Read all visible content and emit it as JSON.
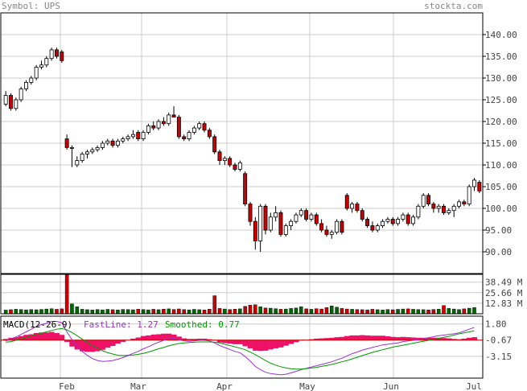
{
  "header": {
    "symbol_label": "Symbol:",
    "symbol": "UPS",
    "site": "stockta.com"
  },
  "colors": {
    "up": "#ffffff",
    "down": "#cc0000",
    "vol_up": "#006600",
    "vol_down": "#cc0000",
    "grid": "#cccccc",
    "histogram": "#ee1166",
    "fastline": "#9933cc",
    "smoothed": "#009900",
    "zero_line": "#cc0000"
  },
  "chart_data": [
    {
      "type": "candlestick",
      "title": "",
      "x_ticks": [
        "Feb",
        "Mar",
        "Apr",
        "May",
        "Jun",
        "Jul"
      ],
      "y_ticks": [
        "140.00",
        "135.00",
        "130.00",
        "125.00",
        "120.00",
        "115.00",
        "110.00",
        "105.00",
        "100.00",
        "95.00",
        "90.00"
      ],
      "ylim": [
        85,
        145
      ],
      "grid": true,
      "ohlc": [
        [
          124.0,
          127.0,
          123.5,
          126.0
        ],
        [
          126.0,
          126.5,
          122.5,
          123.0
        ],
        [
          123.0,
          125.5,
          122.5,
          125.0
        ],
        [
          125.0,
          128.0,
          124.5,
          127.5
        ],
        [
          127.5,
          129.5,
          127.0,
          129.0
        ],
        [
          129.0,
          130.5,
          128.5,
          130.0
        ],
        [
          130.0,
          133.0,
          129.5,
          132.5
        ],
        [
          132.5,
          134.0,
          132.0,
          133.0
        ],
        [
          133.0,
          135.0,
          132.5,
          134.5
        ],
        [
          134.5,
          137.0,
          134.0,
          136.5
        ],
        [
          136.5,
          137.0,
          134.5,
          135.0
        ],
        [
          136.0,
          136.5,
          133.5,
          134.0
        ],
        [
          116.0,
          117.0,
          113.5,
          114.0
        ],
        [
          114.0,
          114.5,
          109.5,
          114.0
        ],
        [
          110.0,
          112.0,
          109.5,
          111.0
        ],
        [
          111.0,
          113.0,
          110.5,
          112.5
        ],
        [
          112.5,
          113.5,
          111.5,
          113.0
        ],
        [
          113.0,
          114.0,
          112.5,
          113.5
        ],
        [
          113.5,
          114.5,
          113.0,
          114.0
        ],
        [
          114.0,
          115.5,
          113.5,
          115.0
        ],
        [
          115.0,
          116.0,
          114.5,
          115.5
        ],
        [
          115.5,
          116.0,
          114.0,
          114.5
        ],
        [
          114.5,
          116.0,
          114.0,
          115.5
        ],
        [
          115.5,
          116.5,
          115.0,
          116.0
        ],
        [
          116.0,
          117.0,
          115.5,
          116.5
        ],
        [
          116.5,
          118.0,
          116.0,
          117.0
        ],
        [
          117.5,
          118.0,
          115.5,
          116.0
        ],
        [
          116.0,
          118.0,
          115.5,
          117.5
        ],
        [
          117.5,
          119.5,
          117.0,
          119.0
        ],
        [
          119.0,
          120.0,
          118.0,
          118.5
        ],
        [
          118.5,
          120.5,
          118.0,
          120.0
        ],
        [
          120.0,
          121.0,
          119.0,
          119.5
        ],
        [
          119.5,
          122.0,
          119.0,
          121.5
        ],
        [
          121.5,
          123.5,
          121.0,
          121.0
        ],
        [
          121.0,
          121.5,
          116.0,
          116.5
        ],
        [
          116.5,
          117.0,
          115.5,
          116.0
        ],
        [
          116.0,
          118.0,
          115.5,
          117.5
        ],
        [
          117.5,
          119.0,
          117.0,
          118.5
        ],
        [
          118.5,
          120.0,
          118.0,
          119.5
        ],
        [
          119.5,
          120.0,
          117.5,
          118.0
        ],
        [
          118.0,
          118.5,
          116.0,
          116.5
        ],
        [
          116.5,
          117.0,
          112.5,
          113.0
        ],
        [
          113.0,
          113.5,
          110.0,
          111.0
        ],
        [
          111.0,
          112.0,
          110.0,
          111.5
        ],
        [
          111.5,
          112.0,
          109.5,
          110.0
        ],
        [
          110.0,
          110.5,
          108.5,
          109.0
        ],
        [
          109.0,
          111.0,
          108.5,
          110.5
        ],
        [
          108.0,
          108.5,
          100.5,
          101.0
        ],
        [
          101.0,
          101.5,
          96.0,
          97.0
        ],
        [
          97.0,
          98.0,
          90.5,
          92.5
        ],
        [
          92.5,
          101.0,
          90.0,
          100.5
        ],
        [
          100.5,
          101.0,
          94.0,
          95.0
        ],
        [
          95.0,
          99.0,
          94.5,
          98.0
        ],
        [
          98.0,
          100.5,
          97.0,
          99.0
        ],
        [
          99.0,
          99.5,
          93.5,
          94.0
        ],
        [
          94.0,
          96.5,
          93.5,
          96.0
        ],
        [
          96.0,
          97.5,
          95.0,
          97.0
        ],
        [
          97.0,
          99.0,
          96.5,
          98.5
        ],
        [
          98.5,
          100.0,
          98.0,
          99.5
        ],
        [
          99.5,
          100.0,
          97.0,
          97.5
        ],
        [
          97.5,
          99.0,
          97.0,
          98.5
        ],
        [
          98.5,
          99.0,
          96.0,
          96.5
        ],
        [
          96.5,
          97.5,
          94.5,
          95.0
        ],
        [
          95.0,
          96.0,
          93.5,
          94.0
        ],
        [
          94.0,
          95.0,
          93.0,
          94.5
        ],
        [
          94.5,
          97.5,
          94.0,
          97.0
        ],
        [
          97.0,
          97.5,
          94.0,
          94.5
        ],
        [
          103.0,
          103.5,
          99.5,
          100.0
        ],
        [
          100.0,
          101.5,
          99.0,
          101.0
        ],
        [
          101.0,
          101.5,
          99.0,
          99.5
        ],
        [
          99.5,
          100.0,
          97.0,
          97.5
        ],
        [
          97.5,
          98.0,
          95.5,
          96.0
        ],
        [
          96.0,
          97.0,
          94.5,
          95.0
        ],
        [
          95.0,
          96.5,
          94.5,
          96.0
        ],
        [
          96.0,
          97.5,
          95.5,
          97.0
        ],
        [
          97.0,
          98.0,
          96.5,
          97.5
        ],
        [
          97.5,
          98.0,
          96.0,
          96.5
        ],
        [
          96.5,
          98.0,
          96.0,
          97.5
        ],
        [
          97.5,
          99.0,
          97.0,
          98.5
        ],
        [
          98.5,
          99.0,
          96.0,
          96.5
        ],
        [
          96.5,
          98.5,
          96.0,
          98.0
        ],
        [
          98.0,
          101.0,
          97.5,
          100.5
        ],
        [
          100.5,
          103.5,
          100.0,
          103.0
        ],
        [
          103.0,
          103.5,
          100.5,
          101.0
        ],
        [
          101.0,
          101.5,
          99.0,
          100.0
        ],
        [
          100.0,
          101.0,
          99.0,
          100.5
        ],
        [
          100.5,
          101.0,
          98.5,
          99.0
        ],
        [
          99.0,
          100.0,
          98.5,
          99.5
        ],
        [
          99.5,
          101.0,
          98.0,
          100.5
        ],
        [
          100.5,
          102.0,
          100.0,
          101.5
        ],
        [
          101.5,
          102.0,
          100.5,
          101.0
        ],
        [
          101.0,
          105.5,
          100.5,
          105.0
        ],
        [
          105.0,
          107.0,
          104.0,
          106.5
        ],
        [
          106.0,
          106.5,
          103.5,
          104.0
        ]
      ]
    },
    {
      "type": "bar",
      "title": "",
      "y_ticks": [
        "38.49 M",
        "25.66 M",
        "12.83 M"
      ],
      "ylim": [
        0,
        48
      ],
      "volume": [
        4.5,
        5.0,
        5.5,
        5.2,
        4.8,
        5.1,
        4.9,
        5.3,
        5.8,
        6.2,
        5.5,
        6.0,
        48.0,
        12.0,
        8.5,
        5.5,
        5.0,
        4.6,
        5.2,
        4.8,
        5.4,
        5.0,
        4.7,
        5.3,
        5.1,
        4.9,
        5.6,
        5.2,
        4.8,
        5.5,
        5.0,
        5.7,
        6.0,
        5.3,
        5.9,
        5.1,
        4.8,
        5.4,
        5.0,
        4.7,
        5.6,
        22.0,
        6.5,
        5.8,
        5.2,
        5.6,
        6.0,
        9.0,
        10.5,
        11.0,
        8.5,
        7.0,
        6.8,
        6.2,
        5.5,
        5.8,
        6.5,
        7.0,
        8.5,
        6.0,
        5.5,
        6.2,
        5.8,
        7.5,
        9.5,
        8.0,
        6.5,
        5.8,
        5.5,
        5.2,
        5.0,
        4.8,
        5.5,
        5.0,
        4.6,
        5.2,
        4.9,
        5.4,
        5.8,
        6.0,
        5.5,
        5.2,
        5.0,
        4.7,
        5.3,
        5.6,
        10.0,
        6.5,
        5.8,
        5.2,
        6.0,
        6.8,
        7.5
      ]
    },
    {
      "type": "line",
      "title": "MACD(12-26-9)",
      "y_ticks": [
        "1.80",
        "-0.67",
        "-3.15"
      ],
      "ylim": [
        -6.5,
        3.0
      ],
      "series": [
        {
          "name": "FastLine",
          "last": "1.27",
          "values": [
            -0.8,
            -0.5,
            -0.2,
            0.2,
            0.6,
            1.0,
            1.4,
            1.7,
            1.9,
            2.2,
            2.2,
            2.0,
            0.6,
            -0.6,
            -1.6,
            -2.4,
            -3.0,
            -3.5,
            -3.8,
            -3.95,
            -3.9,
            -3.8,
            -3.6,
            -3.35,
            -3.05,
            -2.7,
            -2.4,
            -2.0,
            -1.7,
            -1.3,
            -1.0,
            -0.7,
            -0.45,
            -0.4,
            -0.6,
            -0.8,
            -0.85,
            -0.8,
            -0.7,
            -0.7,
            -0.8,
            -1.1,
            -1.5,
            -1.8,
            -2.1,
            -2.4,
            -2.6,
            -3.2,
            -3.9,
            -4.7,
            -5.2,
            -5.6,
            -5.8,
            -5.9,
            -6.0,
            -5.9,
            -5.7,
            -5.45,
            -5.2,
            -5.0,
            -4.8,
            -4.6,
            -4.4,
            -4.2,
            -4.0,
            -3.7,
            -3.45,
            -3.1,
            -2.75,
            -2.5,
            -2.2,
            -2.0,
            -1.8,
            -1.6,
            -1.4,
            -1.3,
            -1.2,
            -1.1,
            -0.9,
            -0.8,
            -0.7,
            -0.6,
            -0.45,
            -0.3,
            -0.15,
            0.0,
            0.1,
            0.2,
            0.3,
            0.45,
            0.7,
            1.0,
            1.27
          ]
        },
        {
          "name": "Smoothed",
          "last": "0.77",
          "values": [
            -1.0,
            -0.9,
            -0.7,
            -0.5,
            -0.3,
            0.0,
            0.2,
            0.4,
            0.6,
            0.8,
            1.0,
            1.1,
            0.9,
            0.5,
            0.0,
            -0.5,
            -1.0,
            -1.5,
            -1.9,
            -2.3,
            -2.6,
            -2.8,
            -3.0,
            -3.05,
            -3.0,
            -2.95,
            -2.85,
            -2.7,
            -2.5,
            -2.25,
            -2.0,
            -1.8,
            -1.55,
            -1.35,
            -1.2,
            -1.1,
            -1.05,
            -1.0,
            -0.95,
            -0.95,
            -0.95,
            -1.0,
            -1.1,
            -1.3,
            -1.5,
            -1.7,
            -1.9,
            -2.15,
            -2.5,
            -2.9,
            -3.35,
            -3.8,
            -4.2,
            -4.5,
            -4.75,
            -4.95,
            -5.05,
            -5.1,
            -5.1,
            -5.05,
            -4.95,
            -4.85,
            -4.7,
            -4.55,
            -4.4,
            -4.2,
            -4.0,
            -3.8,
            -3.55,
            -3.3,
            -3.05,
            -2.8,
            -2.55,
            -2.35,
            -2.15,
            -1.95,
            -1.75,
            -1.6,
            -1.45,
            -1.3,
            -1.15,
            -1.0,
            -0.85,
            -0.7,
            -0.55,
            -0.4,
            -0.25,
            -0.1,
            0.1,
            0.3,
            0.45,
            0.6,
            0.77
          ]
        }
      ]
    }
  ],
  "labels": {
    "fastline_label": "FastLine:",
    "smoothed_label": "Smoothed:"
  }
}
